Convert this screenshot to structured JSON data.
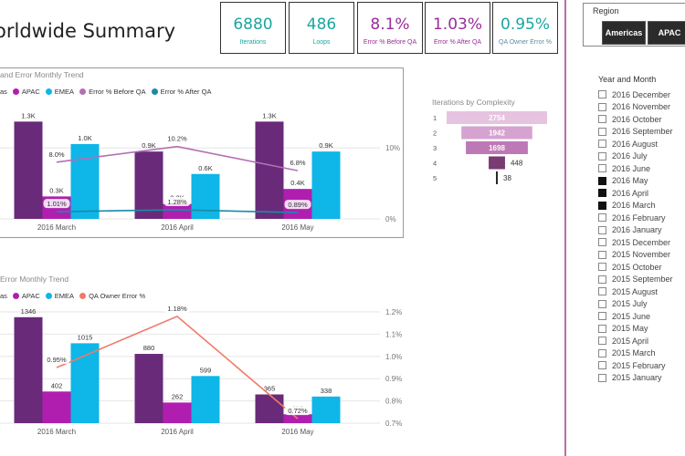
{
  "header": {
    "title": "orldwide Summary"
  },
  "kpis": [
    {
      "value": "6880",
      "label": "Iterations",
      "color": "#1aa6a0"
    },
    {
      "value": "486",
      "label": "Loops",
      "color": "#1aa6a0"
    },
    {
      "value": "8.1%",
      "label": "Error % Before QA",
      "color": "#9b2a9d"
    },
    {
      "value": "1.03%",
      "label": "Error % After QA",
      "color": "#9b2a9d"
    },
    {
      "value": "0.95%",
      "label": "QA Owner Error %",
      "color": "#1aa6a0"
    }
  ],
  "region_slicer": {
    "title": "Region",
    "buttons": [
      "Americas",
      "APAC"
    ]
  },
  "year_month": {
    "title": "Year and Month",
    "items": [
      {
        "label": "2016 December",
        "selected": false
      },
      {
        "label": "2016 November",
        "selected": false
      },
      {
        "label": "2016 October",
        "selected": false
      },
      {
        "label": "2016 September",
        "selected": false
      },
      {
        "label": "2016 August",
        "selected": false
      },
      {
        "label": "2016 July",
        "selected": false
      },
      {
        "label": "2016 June",
        "selected": false
      },
      {
        "label": "2016 May",
        "selected": true
      },
      {
        "label": "2016 April",
        "selected": true
      },
      {
        "label": "2016 March",
        "selected": true
      },
      {
        "label": "2016 February",
        "selected": false
      },
      {
        "label": "2016 January",
        "selected": false
      },
      {
        "label": "2015 December",
        "selected": false
      },
      {
        "label": "2015 November",
        "selected": false
      },
      {
        "label": "2015 October",
        "selected": false
      },
      {
        "label": "2015 September",
        "selected": false
      },
      {
        "label": "2015 August",
        "selected": false
      },
      {
        "label": "2015 July",
        "selected": false
      },
      {
        "label": "2015 June",
        "selected": false
      },
      {
        "label": "2015 May",
        "selected": false
      },
      {
        "label": "2015 April",
        "selected": false
      },
      {
        "label": "2015 March",
        "selected": false
      },
      {
        "label": "2015 February",
        "selected": false
      },
      {
        "label": "2015 January",
        "selected": false
      }
    ]
  },
  "chart_data": [
    {
      "type": "bar",
      "title": "and Error Monthly Trend",
      "legend": [
        "as",
        "APAC",
        "EMEA",
        "Error % Before QA",
        "Error % After QA"
      ],
      "categories": [
        "2016 March",
        "2016 April",
        "2016 May"
      ],
      "series": [
        {
          "name": "as",
          "kind": "bar",
          "values": [
            1.3,
            0.9,
            1.3
          ],
          "labels": [
            "1.3K",
            "0.9K",
            "1.3K"
          ],
          "color": "#6a2a7a"
        },
        {
          "name": "APAC",
          "kind": "bar",
          "values": [
            0.3,
            0.2,
            0.4
          ],
          "labels": [
            "0.3K",
            "0.2K",
            "0.4K"
          ],
          "color": "#b01eb0"
        },
        {
          "name": "EMEA",
          "kind": "bar",
          "values": [
            1.0,
            0.6,
            0.9
          ],
          "labels": [
            "1.0K",
            "0.6K",
            "0.9K"
          ],
          "color": "#0fb6e8"
        },
        {
          "name": "Error % Before QA",
          "kind": "line",
          "values": [
            8.0,
            10.2,
            6.8
          ],
          "labels": [
            "8.0%",
            "10.2%",
            "6.8%"
          ],
          "color": "#b46fb4"
        },
        {
          "name": "Error % After QA",
          "kind": "line",
          "values": [
            1.01,
            1.28,
            0.89
          ],
          "labels": [
            "1.01%",
            "1.28%",
            "0.89%"
          ],
          "color": "#1a8aa8"
        }
      ],
      "y2_ticks": [
        "10%",
        "0%"
      ],
      "y2_range": [
        0,
        14.4
      ]
    },
    {
      "type": "bar",
      "title": "Error Monthly Trend",
      "legend": [
        "as",
        "APAC",
        "EMEA",
        "QA Owner Error %"
      ],
      "categories": [
        "2016 March",
        "2016 April",
        "2016 May"
      ],
      "series": [
        {
          "name": "as",
          "kind": "bar",
          "values": [
            1346,
            880,
            365
          ],
          "labels": [
            "1346",
            "880",
            "365"
          ],
          "color": "#6a2a7a"
        },
        {
          "name": "APAC",
          "kind": "bar",
          "values": [
            402,
            262,
            113
          ],
          "labels": [
            "402",
            "262",
            "113"
          ],
          "color": "#b01eb0"
        },
        {
          "name": "EMEA",
          "kind": "bar",
          "values": [
            1015,
            599,
            338
          ],
          "labels": [
            "1015",
            "599",
            "338"
          ],
          "color": "#0fb6e8"
        },
        {
          "name": "QA Owner Error %",
          "kind": "line",
          "values": [
            0.95,
            1.18,
            0.72
          ],
          "labels": [
            "0.95%",
            "1.18%",
            "0.72%"
          ],
          "color": "#f07a68"
        }
      ],
      "y2_ticks": [
        "1.2%",
        "1.1%",
        "1.0%",
        "0.9%",
        "0.8%",
        "0.7%"
      ],
      "y2_range": [
        0.7,
        1.2
      ]
    },
    {
      "type": "bar",
      "title": "Iterations by Complexity",
      "categories": [
        "1",
        "2",
        "3",
        "4",
        "5"
      ],
      "values": [
        2754,
        1942,
        1698,
        448,
        38
      ],
      "colors": [
        "#e6c3e0",
        "#d6a2d0",
        "#bd79b5",
        "#7a3a72",
        "#2a2a2a"
      ]
    }
  ]
}
